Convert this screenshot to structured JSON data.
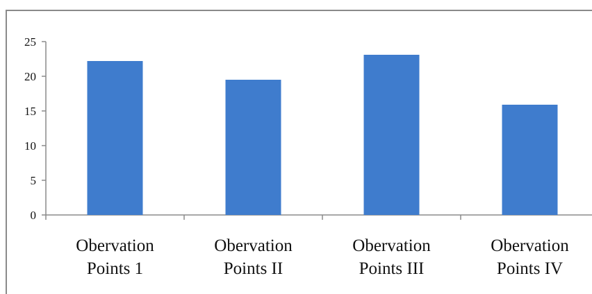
{
  "chart_data": {
    "type": "bar",
    "title": "",
    "xlabel": "",
    "ylabel": "",
    "categories": [
      [
        "Obervation",
        "Points 1"
      ],
      [
        "Obervation",
        "Points II"
      ],
      [
        "Obervation",
        "Points III"
      ],
      [
        "Obervation",
        "Points IV"
      ]
    ],
    "values": [
      22.2,
      19.5,
      23.1,
      15.9
    ],
    "ylim": [
      0,
      25
    ],
    "yticks": [
      "0",
      "5",
      "10",
      "15",
      "20",
      "25"
    ],
    "grid": false,
    "legend": "none",
    "bar_color": "#3f7ccd",
    "axis_color": "#8a8a8a"
  }
}
